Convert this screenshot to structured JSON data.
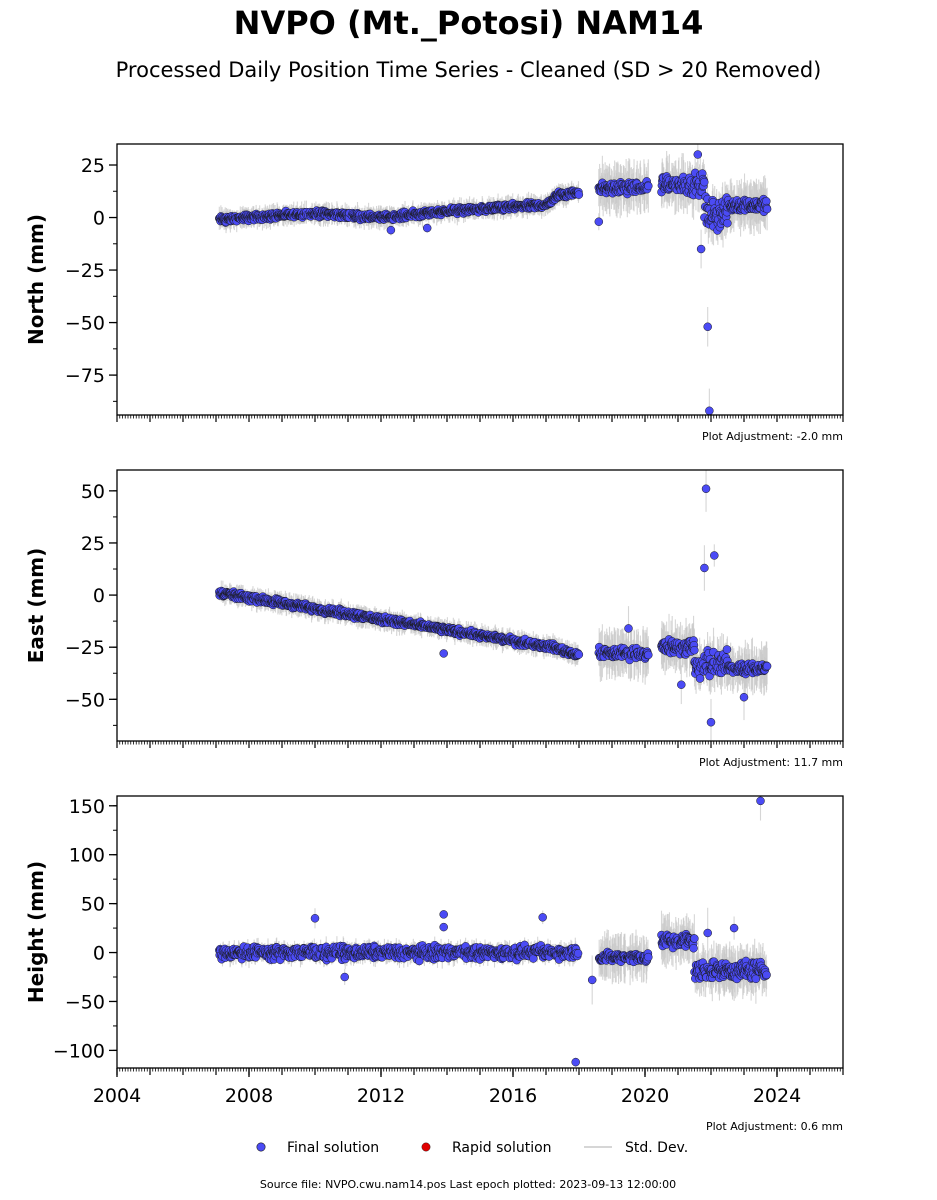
{
  "title": "NVPO (Mt._Potosi) NAM14",
  "subtitle": "Processed Daily Position Time Series - Cleaned (SD > 20 Removed)",
  "legend": {
    "final": "Final solution",
    "rapid": "Rapid solution",
    "std": "Std. Dev."
  },
  "footer": "Source file: NVPO.cwu.nam14.pos  Last epoch plotted: 2023-09-13 12:00:00",
  "colors": {
    "final": "#4b4bf5",
    "rapid": "#e00000",
    "std": "#c8c8c8",
    "edge": "#1a1a1a"
  },
  "chart_data": [
    {
      "type": "scatter",
      "ylabel": "North (mm)",
      "adjustment": "Plot Adjustment: -2.0 mm",
      "xlim": [
        2004,
        2026
      ],
      "ylim": [
        -94,
        35
      ],
      "yticks": [
        25,
        0,
        -25,
        -50,
        -75
      ],
      "ytick_labels": [
        "25",
        "0",
        "−25",
        "−50",
        "−75"
      ],
      "trend": [
        [
          2007.1,
          -1
        ],
        [
          2010,
          2
        ],
        [
          2012,
          0
        ],
        [
          2014,
          3
        ],
        [
          2017,
          6
        ],
        [
          2017.4,
          11
        ],
        [
          2018,
          12
        ]
      ],
      "segments": [
        {
          "from": 2018.6,
          "to": 2020.1,
          "mean": 14,
          "spread": 3
        },
        {
          "from": 2020.5,
          "to": 2021.8,
          "mean": 16,
          "spread": 5
        },
        {
          "from": 2021.8,
          "to": 2022.5,
          "mean": 2,
          "spread": 8
        },
        {
          "from": 2022.5,
          "to": 2023.7,
          "mean": 6,
          "spread": 3
        }
      ],
      "outliers": [
        [
          2021.9,
          -52
        ],
        [
          2021.95,
          -92
        ],
        [
          2021.7,
          -15
        ],
        [
          2021.6,
          30
        ],
        [
          2018.6,
          -2
        ],
        [
          2012.3,
          -6
        ],
        [
          2013.4,
          -5
        ]
      ]
    },
    {
      "type": "scatter",
      "ylabel": "East (mm)",
      "adjustment": "Plot Adjustment: 11.7 mm",
      "xlim": [
        2004,
        2026
      ],
      "ylim": [
        -70,
        60
      ],
      "yticks": [
        50,
        25,
        0,
        -25,
        -50
      ],
      "ytick_labels": [
        "50",
        "25",
        "0",
        "−25",
        "−50"
      ],
      "trend": [
        [
          2007.1,
          1
        ],
        [
          2017.2,
          -25
        ],
        [
          2018,
          -29
        ]
      ],
      "segments": [
        {
          "from": 2018.6,
          "to": 2020.1,
          "mean": -28,
          "spread": 3
        },
        {
          "from": 2020.5,
          "to": 2021.5,
          "mean": -25,
          "spread": 4
        },
        {
          "from": 2021.5,
          "to": 2022.5,
          "mean": -33,
          "spread": 8
        },
        {
          "from": 2022.5,
          "to": 2023.7,
          "mean": -35,
          "spread": 3
        }
      ],
      "outliers": [
        [
          2021.85,
          51
        ],
        [
          2022.1,
          19
        ],
        [
          2021.8,
          13
        ],
        [
          2022.0,
          -61
        ],
        [
          2023.0,
          -49
        ],
        [
          2013.9,
          -28
        ],
        [
          2019.5,
          -16
        ],
        [
          2021.1,
          -43
        ]
      ]
    },
    {
      "type": "scatter",
      "ylabel": "Height (mm)",
      "adjustment": "Plot Adjustment: 0.6 mm",
      "xlim": [
        2004,
        2026
      ],
      "ylim": [
        -118,
        160
      ],
      "xticks": [
        2004,
        2008,
        2012,
        2016,
        2020,
        2024
      ],
      "yticks": [
        150,
        100,
        50,
        0,
        -50,
        -100
      ],
      "ytick_labels": [
        "150",
        "100",
        "50",
        "0",
        "−50",
        "−100"
      ],
      "trend": [
        [
          2007.1,
          0
        ],
        [
          2018,
          0
        ]
      ],
      "segments": [
        {
          "from": 2007.1,
          "to": 2018.0,
          "mean": 0,
          "spread": 7
        },
        {
          "from": 2018.6,
          "to": 2020.1,
          "mean": -5,
          "spread": 6
        },
        {
          "from": 2020.5,
          "to": 2021.5,
          "mean": 12,
          "spread": 8
        },
        {
          "from": 2021.5,
          "to": 2023.7,
          "mean": -18,
          "spread": 10
        }
      ],
      "outliers": [
        [
          2023.5,
          155
        ],
        [
          2017.9,
          -112
        ],
        [
          2013.9,
          39
        ],
        [
          2010.0,
          35
        ],
        [
          2016.9,
          36
        ],
        [
          2013.9,
          26
        ],
        [
          2010.9,
          -25
        ],
        [
          2018.4,
          -28
        ],
        [
          2021.9,
          20
        ],
        [
          2022.7,
          25
        ]
      ]
    }
  ]
}
